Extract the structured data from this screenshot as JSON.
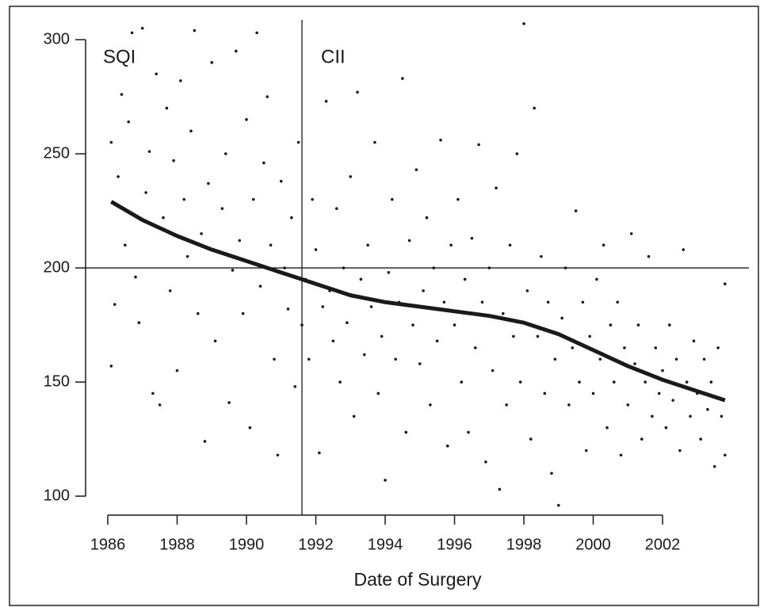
{
  "chart_data": {
    "type": "scatter",
    "xlabel": "Date of Surgery",
    "annotations": [
      "SQI",
      "CII"
    ],
    "xlim": [
      1985.36,
      2004.49
    ],
    "ylim": [
      91.7,
      314.6
    ],
    "xticks": [
      1986,
      1988,
      1990,
      1992,
      1994,
      1996,
      1998,
      2000,
      2002
    ],
    "yticks": [
      100,
      150,
      200,
      250,
      300
    ],
    "reference_lines": {
      "x": 1991.6,
      "y": 200
    },
    "points": {
      "color": "#1a1a1a",
      "x": [
        1986.1,
        1986.1,
        1986.2,
        1986.3,
        1986.4,
        1986.5,
        1986.6,
        1986.7,
        1986.8,
        1986.9,
        1987.0,
        1987.1,
        1987.2,
        1987.3,
        1987.4,
        1987.5,
        1987.6,
        1987.7,
        1987.8,
        1987.9,
        1988.0,
        1988.1,
        1988.2,
        1988.3,
        1988.4,
        1988.5,
        1988.6,
        1988.7,
        1988.8,
        1988.9,
        1989.0,
        1989.1,
        1989.3,
        1989.4,
        1989.5,
        1989.6,
        1989.7,
        1989.8,
        1989.9,
        1990.0,
        1990.1,
        1990.2,
        1990.3,
        1990.4,
        1990.5,
        1990.6,
        1990.7,
        1990.8,
        1990.9,
        1991.0,
        1991.1,
        1991.2,
        1991.3,
        1991.4,
        1991.5,
        1991.6,
        1991.7,
        1991.8,
        1991.9,
        1992.0,
        1992.1,
        1992.2,
        1992.3,
        1992.4,
        1992.5,
        1992.6,
        1992.7,
        1992.8,
        1992.9,
        1993.0,
        1993.1,
        1993.2,
        1993.3,
        1993.4,
        1993.5,
        1993.6,
        1993.7,
        1993.8,
        1993.9,
        1994.0,
        1994.1,
        1994.2,
        1994.3,
        1994.4,
        1994.5,
        1994.6,
        1994.7,
        1994.8,
        1994.9,
        1995.0,
        1995.1,
        1995.2,
        1995.3,
        1995.4,
        1995.5,
        1995.6,
        1995.7,
        1995.8,
        1995.9,
        1996.0,
        1996.1,
        1996.2,
        1996.3,
        1996.4,
        1996.5,
        1996.6,
        1996.7,
        1996.8,
        1996.9,
        1997.0,
        1997.1,
        1997.2,
        1997.3,
        1997.4,
        1997.5,
        1997.6,
        1997.7,
        1997.8,
        1997.9,
        1998.0,
        1998.1,
        1998.2,
        1998.3,
        1998.4,
        1998.5,
        1998.6,
        1998.7,
        1998.8,
        1998.9,
        1999.0,
        1999.1,
        1999.2,
        1999.3,
        1999.4,
        1999.5,
        1999.6,
        1999.7,
        1999.8,
        1999.9,
        2000.0,
        2000.1,
        2000.2,
        2000.3,
        2000.4,
        2000.5,
        2000.6,
        2000.7,
        2000.8,
        2000.9,
        2001.0,
        2001.1,
        2001.2,
        2001.3,
        2001.4,
        2001.5,
        2001.6,
        2001.7,
        2001.8,
        2001.9,
        2002.0,
        2002.1,
        2002.2,
        2002.3,
        2002.4,
        2002.5,
        2002.6,
        2002.7,
        2002.8,
        2002.9,
        2003.0,
        2003.1,
        2003.2,
        2003.3,
        2003.4,
        2003.5,
        2003.6,
        2003.7,
        2003.8,
        2003.8
      ],
      "y": [
        255,
        157,
        184,
        240,
        276,
        210,
        264,
        303,
        196,
        176,
        305,
        233,
        251,
        145,
        285,
        140,
        222,
        270,
        190,
        247,
        155,
        282,
        230,
        205,
        260,
        304,
        180,
        215,
        124,
        237,
        290,
        168,
        226,
        250,
        141,
        199,
        295,
        212,
        180,
        265,
        130,
        230,
        303,
        192,
        246,
        275,
        210,
        160,
        118,
        238,
        200,
        182,
        222,
        148,
        255,
        175,
        195,
        160,
        230,
        208,
        119,
        183,
        273,
        190,
        168,
        226,
        150,
        200,
        176,
        240,
        135,
        277,
        195,
        162,
        210,
        183,
        255,
        145,
        170,
        107,
        198,
        230,
        160,
        185,
        283,
        128,
        212,
        175,
        243,
        158,
        190,
        222,
        140,
        200,
        168,
        256,
        185,
        122,
        210,
        175,
        230,
        150,
        195,
        128,
        213,
        165,
        254,
        185,
        115,
        200,
        155,
        235,
        103,
        180,
        140,
        210,
        170,
        250,
        150,
        307,
        190,
        125,
        270,
        170,
        205,
        145,
        185,
        110,
        160,
        96,
        178,
        200,
        140,
        165,
        225,
        150,
        185,
        120,
        170,
        145,
        195,
        160,
        210,
        130,
        175,
        150,
        185,
        118,
        165,
        140,
        215,
        158,
        175,
        125,
        150,
        205,
        135,
        165,
        145,
        155,
        130,
        175,
        142,
        160,
        120,
        208,
        150,
        135,
        168,
        145,
        125,
        160,
        138,
        150,
        113,
        165,
        135,
        193,
        118
      ]
    },
    "trend": {
      "color": "#1a1a1a",
      "x": [
        1986.1,
        1987,
        1988,
        1989,
        1990,
        1991,
        1992,
        1993,
        1994,
        1995,
        1996,
        1997,
        1998,
        1999,
        2000,
        2001,
        2002,
        2003,
        2003.8
      ],
      "y": [
        229,
        221,
        214,
        208,
        203,
        198,
        193,
        188,
        185,
        183,
        181,
        179,
        176,
        171,
        164,
        157,
        151,
        146,
        142
      ]
    }
  }
}
